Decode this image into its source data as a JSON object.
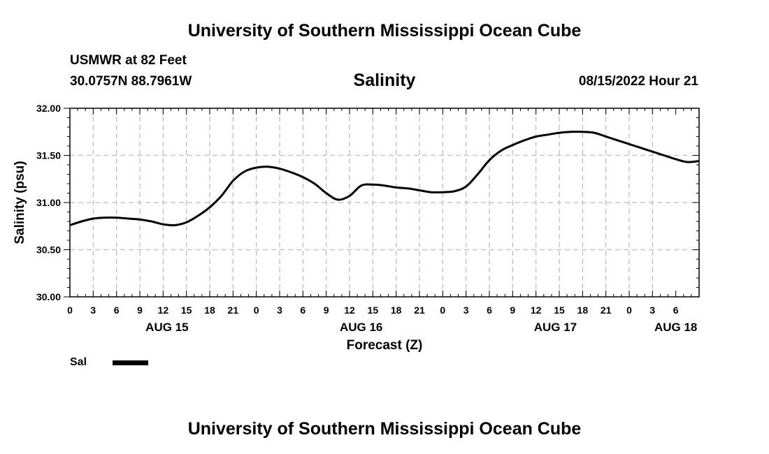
{
  "header": {
    "main_title": "University of Southern Mississippi Ocean Cube",
    "station": "USMWR at 82 Feet",
    "coords": "30.0757N  88.7961W",
    "chart_title": "Salinity",
    "timestamp": "08/15/2022 Hour 21",
    "footer_title": "University of Southern Mississippi Ocean Cube"
  },
  "legend": {
    "label": "Sal",
    "color": "#000000"
  },
  "chart_data": {
    "type": "line",
    "title": "Salinity",
    "xlabel": "Forecast (Z)",
    "ylabel": "Salinity (psu)",
    "xlim": [
      0,
      81
    ],
    "ylim": [
      30.0,
      32.0
    ],
    "y_ticks": [
      30.0,
      30.5,
      31.0,
      31.5,
      32.0
    ],
    "y_tick_labels": [
      "30.00",
      "30.50",
      "31.00",
      "31.50",
      "32.00"
    ],
    "x_tick_labels": [
      "0",
      "3",
      "6",
      "9",
      "12",
      "15",
      "18",
      "21",
      "0",
      "3",
      "6",
      "9",
      "12",
      "15",
      "18",
      "21",
      "0",
      "3",
      "6",
      "9",
      "12",
      "15",
      "18",
      "21",
      "0",
      "3",
      "6"
    ],
    "day_labels": [
      {
        "label": "AUG 15",
        "hour": 12.5
      },
      {
        "label": "AUG 16",
        "hour": 37.5
      },
      {
        "label": "AUG 17",
        "hour": 62.5
      },
      {
        "label": "AUG 18",
        "hour": 78
      }
    ],
    "grid": true,
    "series": [
      {
        "name": "Sal",
        "x": [
          0,
          1.5,
          3,
          4.5,
          6,
          7.5,
          9,
          10.5,
          12,
          13.5,
          15,
          16.5,
          18,
          19.5,
          21,
          22.5,
          24,
          25.5,
          27,
          28.5,
          30,
          31.5,
          33,
          34.5,
          36,
          37.5,
          39,
          40.5,
          42,
          43.5,
          45,
          46.5,
          48,
          49.5,
          51,
          52.5,
          54,
          55.5,
          57,
          58.5,
          60,
          61.5,
          63,
          64.5,
          66,
          67.5,
          69,
          70.5,
          72,
          73.5,
          75,
          76.5,
          78,
          79.5,
          81
        ],
        "values": [
          30.76,
          30.8,
          30.83,
          30.84,
          30.84,
          30.83,
          30.82,
          30.8,
          30.77,
          30.76,
          30.79,
          30.86,
          30.95,
          31.07,
          31.23,
          31.33,
          31.37,
          31.38,
          31.36,
          31.32,
          31.27,
          31.2,
          31.1,
          31.03,
          31.07,
          31.18,
          31.19,
          31.18,
          31.16,
          31.15,
          31.13,
          31.11,
          31.11,
          31.12,
          31.17,
          31.3,
          31.45,
          31.55,
          31.61,
          31.66,
          31.7,
          31.72,
          31.74,
          31.75,
          31.75,
          31.74,
          31.7,
          31.66,
          31.62,
          31.58,
          31.54,
          31.5,
          31.46,
          31.43,
          31.44
        ]
      }
    ]
  }
}
